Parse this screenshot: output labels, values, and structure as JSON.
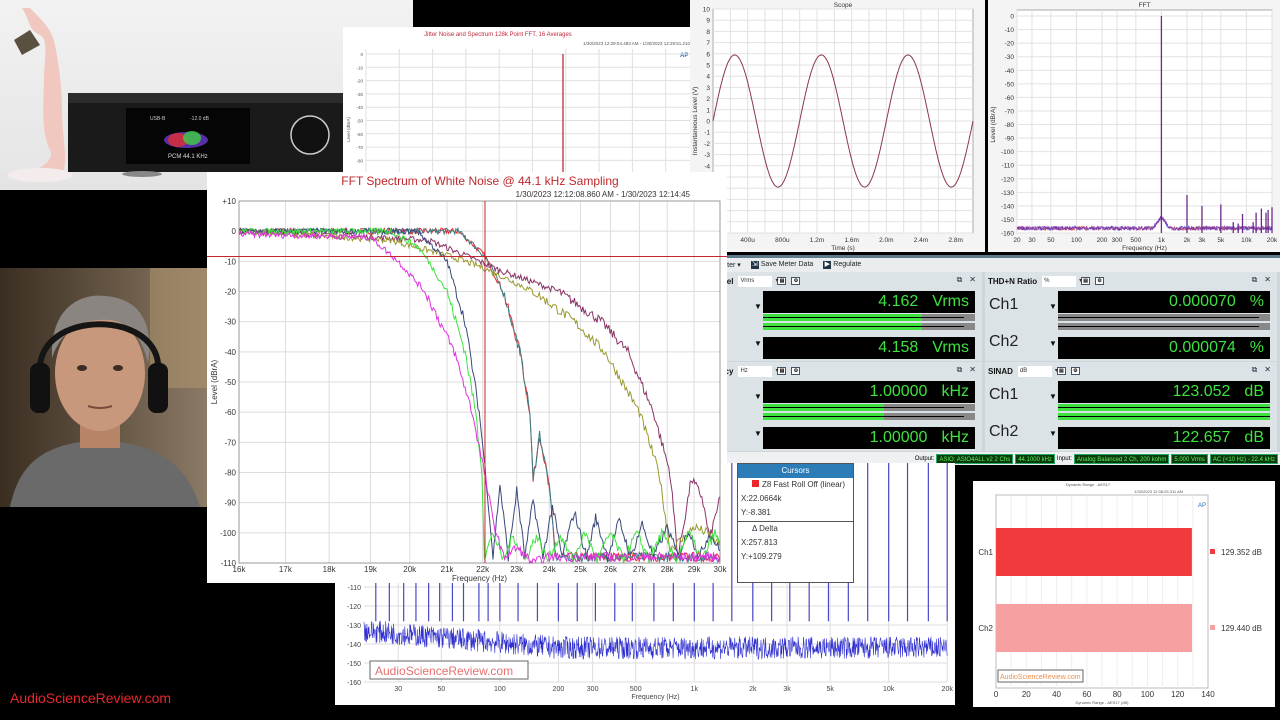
{
  "footer": {
    "brand": "AudioScienceReview.com"
  },
  "product_photo": {
    "display_input": "USB-B",
    "display_volume": "-12.0 dB",
    "display_format": "PCM  44.1 KHz"
  },
  "jitter_chart": {
    "title": "Jitter Noise and Spectrum 128k Point FFT, 16 Averages",
    "timestamp": "1/30/2023 12:29:04.483 AM - 1/30/2023 12:29:51.210",
    "ylabel": "Level (dBrA)",
    "logo": "AP",
    "yticks": [
      "0",
      "-10",
      "-20",
      "-30",
      "-40",
      "-50",
      "-60",
      "-70",
      "-80",
      "-90"
    ]
  },
  "scope": {
    "title": "Scope",
    "xlabel": "Time (s)",
    "ylabel": "Instantaneous Level (V)",
    "yticks": [
      "10",
      "9",
      "8",
      "7",
      "6",
      "5",
      "4",
      "3",
      "2",
      "1",
      "0",
      "-1",
      "-2",
      "-3",
      "-4",
      "-5",
      "-6",
      "-7",
      "-8",
      "-9",
      "-10"
    ],
    "xticks": [
      "0",
      "400u",
      "800u",
      "1.2m",
      "1.6m",
      "2.0m",
      "2.4m",
      "2.8m"
    ]
  },
  "fft": {
    "title": "FFT",
    "xlabel": "Frequency (Hz)",
    "ylabel": "Level (dBrA)",
    "yticks": [
      "0",
      "-10",
      "-20",
      "-30",
      "-40",
      "-50",
      "-60",
      "-70",
      "-80",
      "-90",
      "-100",
      "-110",
      "-120",
      "-130",
      "-140",
      "-150",
      "-160"
    ],
    "xticks": [
      "20",
      "30",
      "50",
      "100",
      "200",
      "300",
      "500",
      "1k",
      "2k",
      "3k",
      "5k",
      "10k",
      "20k"
    ]
  },
  "meter_panel": {
    "toolbar": {
      "add_meter": "Add Meter",
      "save_meter_data": "Save Meter Data",
      "regulate": "Regulate"
    },
    "meters": [
      {
        "title": "RMS Level",
        "unit": "Vrms",
        "ch1": {
          "label": "Ch1",
          "value": "4.162",
          "unit": "Vrms",
          "bar": 0.75
        },
        "ch2": {
          "label": "Ch2",
          "value": "4.158",
          "unit": "Vrms",
          "bar": 0.75
        }
      },
      {
        "title": "THD+N Ratio",
        "unit": "%",
        "ch1": {
          "label": "Ch1",
          "value": "0.000070",
          "unit": "%",
          "bar": 0
        },
        "ch2": {
          "label": "Ch2",
          "value": "0.000074",
          "unit": "%",
          "bar": 0
        }
      },
      {
        "title": "Frequency",
        "unit": "Hz",
        "ch1": {
          "label": "Ch1",
          "value": "1.00000",
          "unit": "kHz",
          "bar": 0.57
        },
        "ch2": {
          "label": "Ch2",
          "value": "1.00000",
          "unit": "kHz",
          "bar": 0.57
        }
      },
      {
        "title": "SINAD",
        "unit": "dB",
        "ch1": {
          "label": "Ch1",
          "value": "123.052",
          "unit": "dB",
          "bar": 1
        },
        "ch2": {
          "label": "Ch2",
          "value": "122.657",
          "unit": "dB",
          "bar": 1
        }
      }
    ],
    "status": {
      "output_label": "Output:",
      "output_device": "ASIO: ASIO4ALL v2 2 Chs",
      "output_rate": "44.1000 kHz",
      "input_label": "Input:",
      "input_device": "Analog Balanced 2 Ch, 200 kohm",
      "input_range": "5.000 Vrms",
      "input_coupling": "AC (<10 Hz) - 22.4 kHz"
    }
  },
  "cursors": {
    "title": "Cursors",
    "series": "Z8 Fast Roll Off (linear)",
    "x": "X:22.0664k",
    "y": "Y:-8.381",
    "delta_label": "Delta",
    "dx": "X:257.813",
    "dy": "Y:+109.279",
    "series_color": "#e8282c"
  },
  "main_chart": {
    "title": "FFT Spectrum of White Noise @ 44.1 kHz Sampling",
    "timestamp": "1/30/2023 12:12:08.860 AM - 1/30/2023 12:14:45",
    "xlabel": "Frequency (Hz)",
    "ylabel": "Level (dBrA)",
    "xticks": [
      "16k",
      "17k",
      "18k",
      "19k",
      "20k",
      "21k",
      "22k",
      "23k",
      "24k",
      "25k",
      "26k",
      "27k",
      "28k",
      "29k",
      "30k"
    ],
    "yticks": [
      "+10",
      "0",
      "-10",
      "-20",
      "-30",
      "-40",
      "-50",
      "-60",
      "-70",
      "-80",
      "-90",
      "-100",
      "-110"
    ]
  },
  "lower_chart": {
    "xlabel": "Frequency (Hz)",
    "watermark": "AudioScienceReview.com",
    "yticks": [
      "-110",
      "-120",
      "-130",
      "-140",
      "-150",
      "-160"
    ],
    "xticks": [
      "30",
      "50",
      "100",
      "200",
      "300",
      "500",
      "1k",
      "2k",
      "3k",
      "5k",
      "10k",
      "20k"
    ]
  },
  "dr_chart": {
    "title": "Dynamic Range - AES17",
    "timestamp": "1/30/2023 12:08:25.311 AM",
    "xlabel": "Dynamic Range - AES17 (dB)",
    "watermark": "AudioScienceReview.com",
    "xticks": [
      "0",
      "20",
      "40",
      "60",
      "80",
      "100",
      "120",
      "140"
    ],
    "value_labels": [
      "129.352 dB",
      "129.440 dB"
    ]
  },
  "chart_data": [
    {
      "id": "main",
      "type": "line",
      "title": "FFT Spectrum of White Noise @ 44.1 kHz Sampling",
      "xlabel": "Frequency (Hz)",
      "ylabel": "Level (dBrA)",
      "xscale": "log",
      "xlim_khz": [
        16,
        30
      ],
      "ylim": [
        -110,
        10
      ],
      "grid": true,
      "cursor": {
        "x_khz": 22.0664,
        "y": -8.381,
        "color": "#c0282c"
      },
      "series": [
        {
          "name": "Z8 Fast Roll Off (linear)",
          "color": "#e8282c",
          "points": [
            [
              16,
              0
            ],
            [
              21.3,
              0
            ],
            [
              21.6,
              -3
            ],
            [
              22.07,
              -8.4
            ],
            [
              22.6,
              -20
            ],
            [
              23.1,
              -40
            ],
            [
              23.4,
              -60
            ],
            [
              23.5,
              -83
            ],
            [
              23.7,
              -67
            ],
            [
              24.0,
              -85
            ],
            [
              24.2,
              -108
            ],
            [
              30,
              -108
            ]
          ]
        },
        {
          "color": "#3a7f86",
          "points": [
            [
              16,
              0
            ],
            [
              21.3,
              0
            ],
            [
              21.6,
              -3
            ],
            [
              22.07,
              -8.4
            ],
            [
              22.6,
              -20
            ],
            [
              23.1,
              -40
            ],
            [
              23.4,
              -60
            ],
            [
              23.5,
              -83
            ],
            [
              23.7,
              -67
            ],
            [
              24.0,
              -85
            ],
            [
              24.2,
              -108
            ],
            [
              30,
              -108
            ]
          ]
        },
        {
          "color": "#8a3468",
          "points": [
            [
              16,
              0
            ],
            [
              20.5,
              -3
            ],
            [
              21.5,
              -8
            ],
            [
              22.5,
              -13
            ],
            [
              24.3,
              -20
            ],
            [
              25.7,
              -30
            ],
            [
              26.6,
              -40
            ],
            [
              27.5,
              -60
            ],
            [
              28.1,
              -80
            ],
            [
              28.4,
              -108
            ],
            [
              28.9,
              -82
            ],
            [
              29.3,
              -88
            ],
            [
              29.6,
              -102
            ],
            [
              30,
              -88
            ]
          ]
        },
        {
          "color": "#9a9a30",
          "points": [
            [
              16,
              0
            ],
            [
              19.5,
              -3
            ],
            [
              21,
              -8
            ],
            [
              22,
              -12
            ],
            [
              23.5,
              -20
            ],
            [
              24.8,
              -30
            ],
            [
              25.8,
              -40
            ],
            [
              27,
              -60
            ],
            [
              27.7,
              -80
            ],
            [
              28.1,
              -105
            ],
            [
              28.6,
              -102
            ],
            [
              29,
              -98
            ],
            [
              29.5,
              -100
            ],
            [
              30,
              -104
            ]
          ]
        },
        {
          "color": "#3a4a7a",
          "points": [
            [
              16,
              0
            ],
            [
              20.2,
              0
            ],
            [
              21,
              -10
            ],
            [
              21.5,
              -30
            ],
            [
              21.9,
              -60
            ],
            [
              22.1,
              -82
            ],
            [
              22.3,
              -108
            ],
            [
              22.5,
              -84
            ],
            [
              22.75,
              -108
            ],
            [
              23.0,
              -86
            ],
            [
              23.25,
              -108
            ],
            [
              23.5,
              -89
            ],
            [
              23.8,
              -108
            ],
            [
              24.1,
              -91
            ],
            [
              24.4,
              -108
            ],
            [
              24.8,
              -93
            ],
            [
              25.2,
              -108
            ],
            [
              25.5,
              -95
            ],
            [
              25.9,
              -108
            ],
            [
              26.3,
              -96
            ],
            [
              26.7,
              -108
            ],
            [
              27.1,
              -97
            ],
            [
              27.5,
              -108
            ],
            [
              28.0,
              -98
            ],
            [
              28.4,
              -108
            ],
            [
              28.8,
              -99
            ],
            [
              29.2,
              -108
            ],
            [
              29.6,
              -100
            ],
            [
              30,
              -106
            ]
          ]
        },
        {
          "color": "#3ee23e",
          "points": [
            [
              16,
              0
            ],
            [
              19.5,
              0
            ],
            [
              20.2,
              -5
            ],
            [
              20.5,
              -10
            ],
            [
              21,
              -20
            ],
            [
              21.5,
              -40
            ],
            [
              21.8,
              -60
            ],
            [
              21.98,
              -80
            ],
            [
              22.05,
              -108
            ],
            [
              22.3,
              -100
            ],
            [
              22.6,
              -109
            ],
            [
              22.9,
              -101
            ],
            [
              23.25,
              -109
            ],
            [
              23.6,
              -101
            ],
            [
              23.95,
              -109
            ],
            [
              24.35,
              -101
            ],
            [
              24.75,
              -109
            ],
            [
              25.15,
              -100
            ],
            [
              25.55,
              -109
            ],
            [
              26.0,
              -100
            ],
            [
              26.45,
              -109
            ],
            [
              26.9,
              -100
            ],
            [
              27.35,
              -109
            ],
            [
              27.8,
              -100
            ],
            [
              28.3,
              -109
            ],
            [
              28.8,
              -100
            ],
            [
              29.3,
              -109
            ],
            [
              29.8,
              -100
            ],
            [
              30,
              -104
            ]
          ]
        },
        {
          "color": "#e030e0",
          "points": [
            [
              16,
              -1
            ],
            [
              19,
              -2
            ],
            [
              19.7,
              -10
            ],
            [
              20.4,
              -20
            ],
            [
              21.2,
              -40
            ],
            [
              21.7,
              -60
            ],
            [
              22.05,
              -80
            ],
            [
              22.3,
              -96
            ],
            [
              22.6,
              -108
            ],
            [
              23,
              -105
            ],
            [
              23.5,
              -110
            ],
            [
              24,
              -108
            ],
            [
              30,
              -108
            ]
          ]
        }
      ]
    },
    {
      "id": "scope",
      "type": "line",
      "title": "Scope",
      "xlabel": "Time (s)",
      "ylabel": "Instantaneous Level (V)",
      "xlim_ms": [
        0,
        3
      ],
      "ylim": [
        -10,
        10
      ],
      "grid": true,
      "signal": {
        "frequency_hz": 1000,
        "amplitude_v": 5.9
      },
      "color": "#8a3a48"
    },
    {
      "id": "fft",
      "type": "line",
      "title": "FFT",
      "xlabel": "Frequency (Hz)",
      "ylabel": "Level (dBrA)",
      "xscale": "log",
      "xlim": [
        20,
        20000
      ],
      "ylim": [
        -160,
        0
      ],
      "grid": true,
      "noise_floor": -158,
      "peaks": [
        [
          1000,
          0
        ],
        [
          2000,
          -132
        ],
        [
          3000,
          -140
        ],
        [
          5000,
          -139
        ],
        [
          7000,
          -152
        ],
        [
          8000,
          -153
        ],
        [
          9000,
          -146
        ],
        [
          12000,
          -152
        ],
        [
          13000,
          -145
        ],
        [
          15000,
          -142
        ],
        [
          17000,
          -145
        ],
        [
          18000,
          -143
        ],
        [
          20000,
          -141
        ]
      ],
      "colors": [
        "#e03030",
        "#4040e0",
        "#7a2a9a"
      ]
    },
    {
      "id": "lower",
      "type": "line",
      "xlabel": "Frequency (Hz)",
      "xscale": "log",
      "xlim": [
        20,
        20000
      ],
      "ylim": [
        -160,
        -110
      ],
      "grid": true,
      "noise_floor": -142,
      "color": "#3030d0",
      "spikes_hz": [
        23,
        27,
        32,
        37,
        43,
        49,
        57,
        65,
        78,
        87,
        100,
        124,
        156,
        200,
        250,
        310,
        390,
        480,
        620,
        780,
        1000,
        1250,
        1560,
        2000,
        2500,
        3100,
        3900,
        4900,
        6200,
        7800,
        10000,
        12500,
        16000,
        20000
      ]
    },
    {
      "id": "jitter",
      "type": "line",
      "title": "Jitter Noise and Spectrum 128k Point FFT, 16 Averages",
      "ylabel": "Level (dBrA)",
      "ylim": [
        -90,
        0
      ],
      "grid": true,
      "color": "#c0283c"
    },
    {
      "id": "dynamic_range",
      "type": "bar",
      "title": "Dynamic Range - AES17",
      "xlabel": "Dynamic Range - AES17 (dB)",
      "categories": [
        "Ch1",
        "Ch2"
      ],
      "values": [
        129.352,
        129.44
      ],
      "xlim": [
        0,
        140
      ],
      "colors": [
        "#f03a3e",
        "#f7a0a2"
      ],
      "grid": true
    }
  ]
}
